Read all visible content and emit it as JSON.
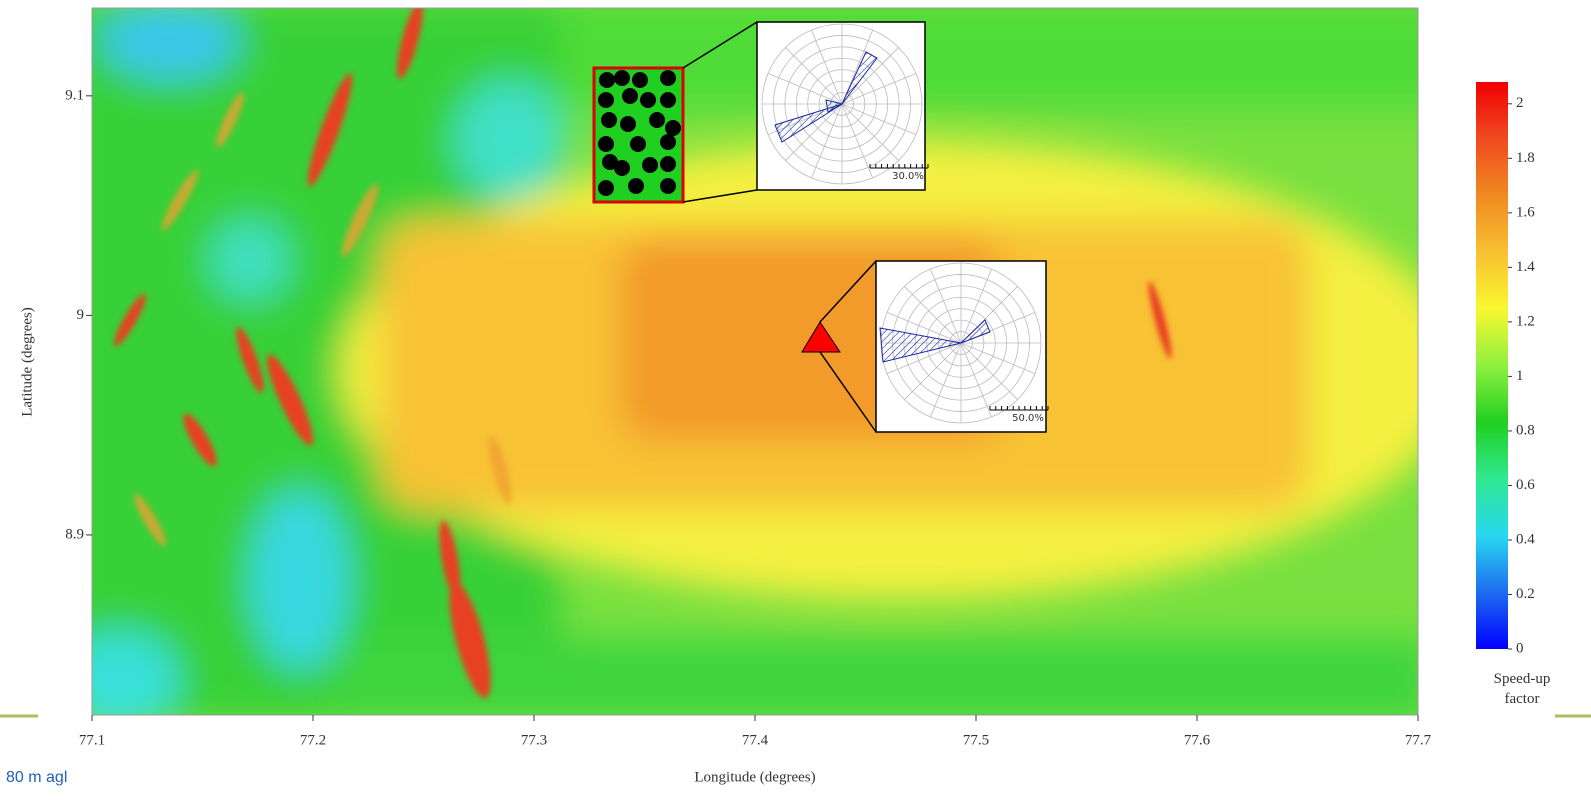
{
  "chart_data": {
    "type": "heatmap",
    "xlabel": "Longitude (degrees)",
    "ylabel": "Latitude (degrees)",
    "xlim": [
      77.1,
      77.7
    ],
    "xticks": [
      77.1,
      77.2,
      77.3,
      77.4,
      77.5,
      77.6,
      77.7
    ],
    "ylim": [
      8.818,
      9.14
    ],
    "yticks": [
      8.9,
      9,
      9.1
    ],
    "colorbar": {
      "label": "Speed-up factor",
      "clim": [
        0,
        2.08
      ],
      "ticks": [
        0,
        0.2,
        0.4,
        0.6,
        0.8,
        1,
        1.2,
        1.4,
        1.6,
        1.8,
        2
      ],
      "colormap": [
        "#0000ff",
        "#1e6cf0",
        "#28d8f0",
        "#30e890",
        "#20d020",
        "#90f040",
        "#f8f830",
        "#f8c030",
        "#f08a20",
        "#f04a20",
        "#f00000"
      ]
    },
    "insets": [
      {
        "scale_label": "30.0%"
      },
      {
        "scale_label": "50.0%"
      }
    ],
    "footnote": "80 m agl"
  }
}
